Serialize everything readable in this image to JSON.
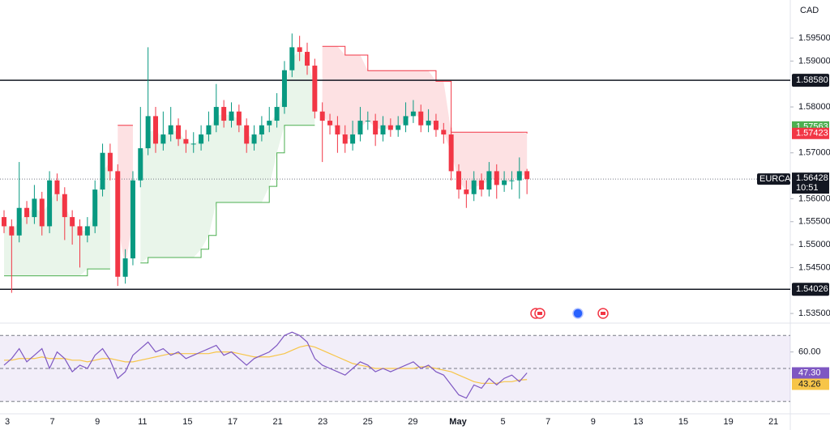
{
  "chart_data": {
    "type": "candlestick",
    "symbol": "EURCAD",
    "currency": "CAD",
    "up_color": "#089981",
    "down_color": "#f23645",
    "open": [
      1.556,
      1.554,
      1.552,
      1.558,
      1.556,
      1.56,
      1.554,
      1.564,
      1.561,
      1.556,
      1.554,
      1.552,
      1.554,
      1.562,
      1.57,
      1.566,
      1.543,
      1.547,
      1.564,
      1.571,
      1.578,
      1.572,
      1.574,
      1.576,
      1.573,
      1.572,
      1.572,
      1.574,
      1.576,
      1.58,
      1.577,
      1.579,
      1.576,
      1.572,
      1.574,
      1.576,
      1.577,
      1.58,
      1.588,
      1.593,
      1.592,
      1.589,
      1.579,
      1.577,
      1.576,
      1.574,
      1.572,
      1.574,
      1.577,
      1.577,
      1.574,
      1.576,
      1.575,
      1.576,
      1.578,
      1.579,
      1.576,
      1.577,
      1.575,
      1.574,
      1.566,
      1.562,
      1.561,
      1.564,
      1.562,
      1.566,
      1.563,
      1.564,
      1.564,
      1.566
    ],
    "high": [
      1.5575,
      1.5555,
      1.568,
      1.5595,
      1.563,
      1.5615,
      1.566,
      1.5655,
      1.5625,
      1.5575,
      1.5555,
      1.556,
      1.564,
      1.572,
      1.572,
      1.5675,
      1.549,
      1.566,
      1.58,
      1.593,
      1.58,
      1.579,
      1.58,
      1.5775,
      1.575,
      1.5745,
      1.576,
      1.579,
      1.585,
      1.5815,
      1.581,
      1.5805,
      1.5775,
      1.576,
      1.578,
      1.58,
      1.583,
      1.59,
      1.596,
      1.5955,
      1.594,
      1.5905,
      1.581,
      1.5785,
      1.578,
      1.576,
      1.577,
      1.58,
      1.579,
      1.5785,
      1.578,
      1.5775,
      1.578,
      1.581,
      1.5815,
      1.5805,
      1.5795,
      1.5785,
      1.5765,
      1.5755,
      1.5675,
      1.564,
      1.566,
      1.5655,
      1.568,
      1.5675,
      1.566,
      1.566,
      1.569,
      1.5665
    ],
    "low": [
      1.5525,
      1.5395,
      1.5505,
      1.5545,
      1.5545,
      1.552,
      1.5525,
      1.5595,
      1.551,
      1.55,
      1.545,
      1.5505,
      1.5525,
      1.5605,
      1.564,
      1.541,
      1.5415,
      1.5455,
      1.5625,
      1.5695,
      1.57,
      1.5705,
      1.5725,
      1.5715,
      1.57,
      1.57,
      1.5705,
      1.5725,
      1.5745,
      1.5755,
      1.5755,
      1.5745,
      1.57,
      1.5705,
      1.5725,
      1.5745,
      1.5755,
      1.5785,
      1.5865,
      1.59,
      1.587,
      1.5775,
      1.568,
      1.574,
      1.57,
      1.57,
      1.5705,
      1.5725,
      1.575,
      1.5715,
      1.5725,
      1.5735,
      1.5735,
      1.5745,
      1.5765,
      1.5745,
      1.5745,
      1.5735,
      1.572,
      1.564,
      1.56,
      1.558,
      1.5595,
      1.5605,
      1.5605,
      1.56,
      1.5615,
      1.562,
      1.56,
      1.561
    ],
    "close": [
      1.554,
      1.552,
      1.558,
      1.556,
      1.56,
      1.554,
      1.564,
      1.561,
      1.556,
      1.554,
      1.552,
      1.554,
      1.562,
      1.57,
      1.566,
      1.543,
      1.547,
      1.564,
      1.571,
      1.578,
      1.572,
      1.574,
      1.576,
      1.573,
      1.572,
      1.572,
      1.574,
      1.576,
      1.58,
      1.577,
      1.579,
      1.576,
      1.572,
      1.574,
      1.576,
      1.577,
      1.58,
      1.588,
      1.593,
      1.592,
      1.589,
      1.579,
      1.577,
      1.576,
      1.574,
      1.572,
      1.574,
      1.577,
      1.577,
      1.574,
      1.576,
      1.575,
      1.576,
      1.578,
      1.579,
      1.576,
      1.577,
      1.575,
      1.574,
      1.566,
      1.562,
      1.561,
      1.564,
      1.562,
      1.566,
      1.563,
      1.564,
      1.564,
      1.566,
      1.56428
    ],
    "trend_up": {
      "color": "#4caf50",
      "fill": "rgba(76,175,80,0.12)",
      "values": [
        1.5432,
        1.5432,
        1.5432,
        1.5432,
        1.5432,
        1.5432,
        1.5432,
        1.5432,
        1.5432,
        1.5432,
        1.5432,
        1.5447,
        1.5447,
        1.5447,
        1.5447,
        null,
        null,
        null,
        1.546,
        1.5472,
        1.5472,
        1.5472,
        1.5472,
        1.5472,
        1.5472,
        1.5472,
        1.549,
        1.552,
        1.5592,
        1.5592,
        1.5592,
        1.5592,
        1.5592,
        1.5592,
        1.5592,
        1.5627,
        1.57,
        1.576,
        1.576,
        1.576,
        1.576,
        1.576,
        null,
        null,
        null,
        null,
        null,
        null,
        null,
        null,
        null,
        null,
        null,
        null,
        null,
        null,
        null,
        null,
        null,
        null,
        null,
        null,
        null,
        null,
        null,
        null,
        null,
        null,
        null,
        null
      ]
    },
    "trend_down": {
      "color": "#f23645",
      "fill": "rgba(242,54,69,0.15)",
      "values": [
        null,
        null,
        null,
        null,
        null,
        null,
        null,
        null,
        null,
        null,
        null,
        null,
        null,
        null,
        null,
        1.576,
        1.576,
        1.576,
        null,
        null,
        null,
        null,
        null,
        null,
        null,
        null,
        null,
        null,
        null,
        null,
        null,
        null,
        null,
        null,
        null,
        null,
        null,
        null,
        null,
        null,
        null,
        null,
        1.5932,
        1.5932,
        1.5932,
        1.5913,
        1.5913,
        1.5913,
        1.5879,
        1.5879,
        1.5879,
        1.5879,
        1.5879,
        1.5879,
        1.5879,
        1.5879,
        1.5879,
        1.5856,
        1.5856,
        1.5745,
        1.5745,
        1.5745,
        1.5745,
        1.5745,
        1.5745,
        1.5745,
        1.5745,
        1.5745,
        1.5745,
        1.57423
      ]
    },
    "ylim": [
      1.5329,
      1.6033
    ],
    "yticks": [
      {
        "value": 1.595,
        "label": "1.59500"
      },
      {
        "value": 1.59,
        "label": "1.59000"
      },
      {
        "value": 1.58,
        "label": "1.58000"
      },
      {
        "value": 1.57,
        "label": "1.57000"
      },
      {
        "value": 1.56,
        "label": "1.56000"
      },
      {
        "value": 1.555,
        "label": "1.55500"
      },
      {
        "value": 1.55,
        "label": "1.55000"
      },
      {
        "value": 1.545,
        "label": "1.54500"
      },
      {
        "value": 1.535,
        "label": "1.53500"
      }
    ],
    "horizontal_lines": [
      {
        "value": 1.5858,
        "label": "1.58580"
      },
      {
        "value": 1.54026,
        "label": "1.54026"
      }
    ],
    "indicator_labels": [
      {
        "value": 1.57563,
        "label": "1.57563",
        "color": "#4caf50"
      },
      {
        "value": 1.57423,
        "label": "1.57423",
        "color": "#f23645"
      }
    ],
    "last_price": {
      "value": 1.56428,
      "label": "1.56428",
      "countdown": "10:51"
    },
    "time_labels": [
      "3",
      "7",
      "9",
      "11",
      "15",
      "17",
      "21",
      "23",
      "25",
      "29",
      "May",
      "5",
      "7",
      "9",
      "13",
      "15",
      "19",
      "21"
    ],
    "rsi": {
      "color": "#7e57c2",
      "values": [
        52,
        56,
        62,
        54,
        58,
        62,
        50,
        60,
        56,
        48,
        52,
        50,
        58,
        62,
        55,
        44,
        48,
        58,
        62,
        66,
        60,
        62,
        58,
        60,
        56,
        58,
        60,
        62,
        64,
        58,
        60,
        56,
        52,
        56,
        58,
        60,
        64,
        70,
        72,
        70,
        66,
        56,
        52,
        50,
        48,
        46,
        50,
        54,
        52,
        48,
        50,
        48,
        50,
        52,
        54,
        50,
        52,
        48,
        46,
        40,
        34,
        32,
        40,
        38,
        44,
        40,
        44,
        46,
        42,
        47.3
      ],
      "last_label": "47.30",
      "ma": {
        "color": "#f7c548",
        "values": [
          55,
          55,
          56,
          56,
          56,
          57,
          56,
          56,
          56,
          55,
          55,
          54,
          55,
          56,
          56,
          55,
          54,
          54,
          55,
          56,
          57,
          58,
          59,
          59,
          59,
          59,
          59,
          59,
          60,
          60,
          60,
          59,
          58,
          57,
          57,
          57,
          58,
          59,
          61,
          63,
          64,
          63,
          61,
          59,
          57,
          55,
          53,
          52,
          51,
          50,
          50,
          50,
          50,
          50,
          50,
          51,
          51,
          50,
          49,
          48,
          46,
          44,
          42,
          41,
          41,
          41,
          42,
          42,
          43,
          43.26
        ],
        "last_label": "43.26"
      },
      "ylim": [
        22.5,
        77.5
      ],
      "yticks": [
        {
          "value": 60,
          "label": "60.00"
        }
      ],
      "bands": [
        30,
        50,
        70
      ]
    }
  }
}
